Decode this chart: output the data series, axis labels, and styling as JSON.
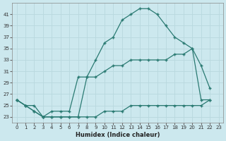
{
  "bg_color": "#cce8ee",
  "grid_color": "#b8d8de",
  "line_color": "#2a7a72",
  "xlabel": "Humidex (Indice chaleur)",
  "xlim": [
    -0.5,
    23.5
  ],
  "ylim": [
    22,
    43
  ],
  "xticks": [
    0,
    1,
    2,
    3,
    4,
    5,
    6,
    7,
    8,
    9,
    10,
    11,
    12,
    13,
    14,
    15,
    16,
    17,
    18,
    19,
    20,
    21,
    22,
    23
  ],
  "yticks": [
    23,
    25,
    27,
    29,
    31,
    33,
    35,
    37,
    39,
    41
  ],
  "line_top_x": [
    0,
    1,
    2,
    3,
    4,
    5,
    6,
    7,
    8,
    9,
    10,
    11,
    12,
    13,
    14,
    15,
    16,
    17,
    18,
    19,
    20,
    21,
    22
  ],
  "line_top_y": [
    26,
    25,
    24,
    23,
    23,
    23,
    23,
    23,
    30,
    33,
    36,
    37,
    40,
    41,
    42,
    42,
    41,
    39,
    37,
    36,
    35,
    32,
    28
  ],
  "line_mid_x": [
    0,
    1,
    2,
    3,
    4,
    5,
    6,
    7,
    8,
    9,
    10,
    11,
    12,
    13,
    14,
    15,
    16,
    17,
    18,
    19,
    20,
    21,
    22
  ],
  "line_mid_y": [
    26,
    25,
    25,
    23,
    24,
    24,
    24,
    30,
    30,
    30,
    31,
    32,
    32,
    33,
    33,
    33,
    33,
    33,
    34,
    34,
    35,
    26,
    26
  ],
  "line_bot_x": [
    0,
    1,
    2,
    3,
    4,
    5,
    6,
    7,
    8,
    9,
    10,
    11,
    12,
    13,
    14,
    15,
    16,
    17,
    18,
    19,
    20,
    21,
    22
  ],
  "line_bot_y": [
    26,
    25,
    24,
    23,
    23,
    23,
    23,
    23,
    23,
    23,
    24,
    24,
    24,
    25,
    25,
    25,
    25,
    25,
    25,
    25,
    25,
    25,
    26
  ]
}
